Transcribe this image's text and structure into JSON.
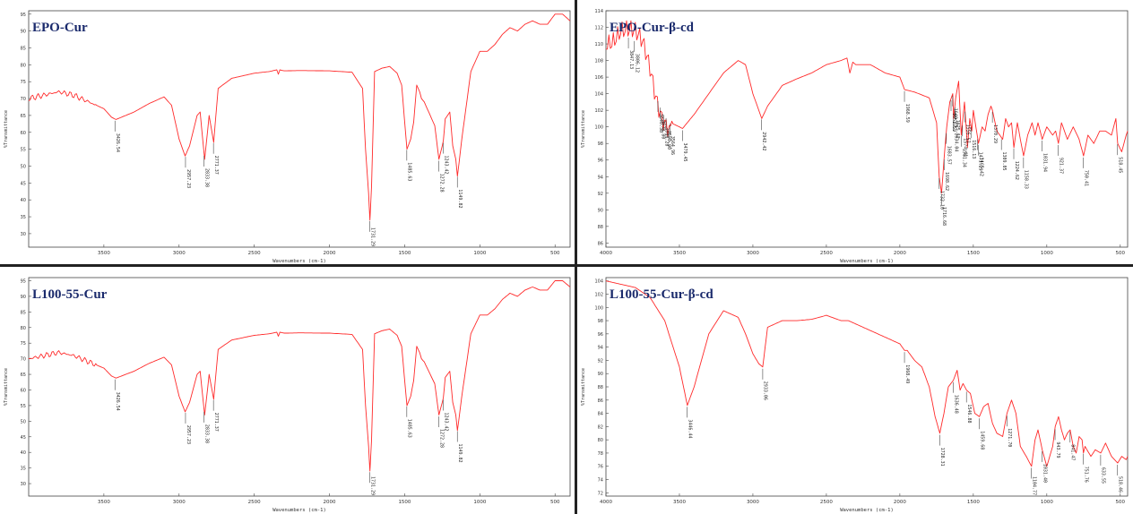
{
  "figure": {
    "line_color": "#ff2a2a",
    "title_color": "#1a2a6c",
    "axis_color": "#444444",
    "label_color": "#333333"
  },
  "chart_data": [
    {
      "type": "line",
      "title": "EPO-Cur",
      "xlabel": "Wavenumbers (cm-1)",
      "ylabel": "%Transmittance",
      "xlim": [
        4000,
        400
      ],
      "ylim": [
        26,
        96
      ],
      "xticks": [
        3500,
        3000,
        2500,
        2000,
        1500,
        1000,
        500
      ],
      "yticks": [
        30,
        35,
        40,
        45,
        50,
        55,
        60,
        65,
        70,
        75,
        80,
        85,
        90,
        95
      ],
      "grid": false,
      "x": [
        4000,
        3900,
        3800,
        3700,
        3600,
        3500,
        3450,
        3420,
        3300,
        3200,
        3100,
        3050,
        3000,
        2960,
        2930,
        2880,
        2860,
        2830,
        2800,
        2770,
        2740,
        2650,
        2500,
        2400,
        2350,
        2340,
        2330,
        2300,
        2200,
        2000,
        1850,
        1780,
        1760,
        1740,
        1731,
        1720,
        1700,
        1650,
        1600,
        1550,
        1520,
        1485,
        1460,
        1440,
        1420,
        1400,
        1388,
        1370,
        1340,
        1300,
        1272,
        1250,
        1243,
        1230,
        1200,
        1180,
        1160,
        1149,
        1120,
        1060,
        1000,
        950,
        900,
        850,
        800,
        750,
        700,
        650,
        600,
        550,
        500,
        450,
        400
      ],
      "values": [
        70,
        71,
        72,
        71,
        69,
        67,
        64.5,
        63.8,
        66,
        68.5,
        70.5,
        68,
        58,
        53,
        56,
        65,
        66,
        52,
        65,
        57,
        73,
        76,
        77.5,
        78,
        78.5,
        77.2,
        78.5,
        78.2,
        78.3,
        78.2,
        77.8,
        73,
        55,
        42,
        34,
        44,
        78,
        79,
        79.5,
        77.5,
        74,
        55,
        58,
        63,
        74,
        72,
        70,
        69,
        66,
        62,
        52,
        56,
        57.5,
        64,
        66,
        56,
        52,
        47,
        58,
        78,
        84,
        84,
        86,
        89,
        91,
        90,
        92,
        93,
        92,
        92,
        95,
        95,
        93
      ],
      "peak_labels": [
        {
          "text": "3426.54",
          "x": 3426.54,
          "y": 63.8
        },
        {
          "text": "2957.23",
          "x": 2957.23,
          "y": 53
        },
        {
          "text": "2833.38",
          "x": 2833.38,
          "y": 52
        },
        {
          "text": "2771.37",
          "x": 2771.37,
          "y": 57
        },
        {
          "text": "1731.29",
          "x": 1731.29,
          "y": 34
        },
        {
          "text": "1485.63",
          "x": 1485.63,
          "y": 55
        },
        {
          "text": "1272.28",
          "x": 1272.28,
          "y": 52
        },
        {
          "text": "1243.42",
          "x": 1243.42,
          "y": 57.5
        },
        {
          "text": "1149.82",
          "x": 1149.82,
          "y": 47
        }
      ]
    },
    {
      "type": "line",
      "title": "EPO-Cur-β-cd",
      "xlabel": "Wavenumbers (cm-1)",
      "ylabel": "%Transmittance",
      "xlim": [
        4000,
        450
      ],
      "ylim": [
        85.5,
        114
      ],
      "xticks": [
        4000,
        3500,
        3000,
        2500,
        2000,
        1500,
        1000,
        500
      ],
      "yticks": [
        86,
        88,
        90,
        92,
        94,
        96,
        98,
        100,
        102,
        104,
        106,
        108,
        110,
        112,
        114
      ],
      "grid": false,
      "x": [
        4000,
        3950,
        3900,
        3850,
        3800,
        3750,
        3700,
        3660,
        3620,
        3600,
        3560,
        3500,
        3479,
        3400,
        3300,
        3200,
        3100,
        3050,
        3000,
        2940,
        2900,
        2800,
        2700,
        2600,
        2500,
        2400,
        2360,
        2340,
        2320,
        2300,
        2200,
        2100,
        2000,
        1968,
        1900,
        1800,
        1750,
        1732,
        1716,
        1700,
        1681,
        1660,
        1640,
        1634,
        1620,
        1600,
        1582,
        1560,
        1540,
        1524,
        1510,
        1500,
        1465,
        1440,
        1420,
        1400,
        1380,
        1370,
        1340,
        1300,
        1280,
        1260,
        1240,
        1224,
        1200,
        1180,
        1158,
        1130,
        1100,
        1080,
        1060,
        1031,
        1000,
        960,
        940,
        921,
        900,
        860,
        820,
        780,
        750,
        720,
        680,
        640,
        600,
        560,
        530,
        518,
        490,
        460,
        450
      ],
      "values": [
        111,
        111,
        111.5,
        111,
        110.5,
        109.5,
        107,
        104,
        102,
        101.5,
        100.5,
        100,
        99.8,
        101.5,
        104,
        106.5,
        108,
        107.5,
        104,
        101,
        102.5,
        105,
        105.8,
        106.5,
        107.5,
        108,
        108.3,
        106.5,
        107.8,
        107.5,
        107.5,
        106.5,
        106,
        104.5,
        104.2,
        103.5,
        100.5,
        94,
        92,
        96,
        100,
        103,
        104,
        101,
        103.5,
        105.5,
        99,
        103,
        97.5,
        101,
        99.5,
        102,
        98,
        100,
        99.5,
        101.5,
        102.5,
        102,
        99.5,
        98.5,
        101,
        100,
        100.5,
        97.5,
        100.5,
        98.5,
        96.5,
        99,
        100.5,
        99,
        100.5,
        98.5,
        100,
        99,
        99.5,
        98,
        100.5,
        98.5,
        100,
        98.5,
        96.5,
        99,
        98,
        99.5,
        99.5,
        99,
        101,
        98,
        97,
        99,
        99.5
      ],
      "peak_labels": [
        {
          "text": "3847.13",
          "x": 3847.13,
          "y": 110
        },
        {
          "text": "3806.12",
          "x": 3806.12,
          "y": 110
        },
        {
          "text": "3646.38",
          "x": 3646.38,
          "y": 105
        },
        {
          "text": "3630.80",
          "x": 3630.8,
          "y": 105
        },
        {
          "text": "3606.28",
          "x": 3606.28,
          "y": 104
        },
        {
          "text": "3590.90",
          "x": 3590.9,
          "y": 103
        },
        {
          "text": "3564.96",
          "x": 3564.96,
          "y": 102
        },
        {
          "text": "3479.45",
          "x": 3479.45,
          "y": 99.8
        },
        {
          "text": "2942.42",
          "x": 2942.42,
          "y": 101
        },
        {
          "text": "1968.59",
          "x": 1968.59,
          "y": 104.5
        },
        {
          "text": "1732.10",
          "x": 1732.1,
          "y": 94
        },
        {
          "text": "1716.68",
          "x": 1716.68,
          "y": 92
        },
        {
          "text": "1698.62",
          "x": 1698.62,
          "y": 96
        },
        {
          "text": "1683.57",
          "x": 1683.57,
          "y": 100
        },
        {
          "text": "1651.59",
          "x": 1651.59,
          "y": 103
        },
        {
          "text": "1640.33",
          "x": 1640.33,
          "y": 104
        },
        {
          "text": "1634.04",
          "x": 1634.04,
          "y": 101
        },
        {
          "text": "1625.12",
          "x": 1625.12,
          "y": 104
        },
        {
          "text": "1581.34",
          "x": 1581.34,
          "y": 99
        },
        {
          "text": "1574.41",
          "x": 1574.41,
          "y": 100
        },
        {
          "text": "1556.57",
          "x": 1556.57,
          "y": 102
        },
        {
          "text": "1516.13",
          "x": 1516.13,
          "y": 101
        },
        {
          "text": "1465.42",
          "x": 1465.42,
          "y": 98
        },
        {
          "text": "1471.29",
          "x": 1471.29,
          "y": 99
        },
        {
          "text": "1370.29",
          "x": 1370.29,
          "y": 102
        },
        {
          "text": "1309.05",
          "x": 1309.05,
          "y": 98.5
        },
        {
          "text": "1224.62",
          "x": 1224.62,
          "y": 97.5
        },
        {
          "text": "1158.33",
          "x": 1158.33,
          "y": 96.5
        },
        {
          "text": "1031.94",
          "x": 1031.94,
          "y": 98.5
        },
        {
          "text": "921.37",
          "x": 921.37,
          "y": 98
        },
        {
          "text": "750.41",
          "x": 750.41,
          "y": 96.5
        },
        {
          "text": "518.45",
          "x": 518.45,
          "y": 97
        }
      ]
    },
    {
      "type": "line",
      "title": "L100-55-Cur",
      "xlabel": "Wavenumbers (cm-1)",
      "ylabel": "%Transmittance",
      "xlim": [
        4000,
        400
      ],
      "ylim": [
        26,
        96
      ],
      "xticks": [
        3500,
        3000,
        2500,
        2000,
        1500,
        1000,
        500
      ],
      "yticks": [
        30,
        35,
        40,
        45,
        50,
        55,
        60,
        65,
        70,
        75,
        80,
        85,
        90,
        95
      ],
      "grid": false,
      "x": [
        4000,
        3900,
        3800,
        3700,
        3600,
        3500,
        3450,
        3420,
        3300,
        3200,
        3100,
        3050,
        3000,
        2960,
        2930,
        2880,
        2860,
        2830,
        2800,
        2770,
        2740,
        2650,
        2500,
        2400,
        2350,
        2340,
        2330,
        2300,
        2200,
        2000,
        1850,
        1780,
        1760,
        1740,
        1731,
        1720,
        1700,
        1650,
        1600,
        1550,
        1520,
        1485,
        1460,
        1440,
        1420,
        1400,
        1388,
        1370,
        1340,
        1300,
        1272,
        1250,
        1243,
        1230,
        1200,
        1180,
        1160,
        1149,
        1120,
        1060,
        1000,
        950,
        900,
        850,
        800,
        750,
        700,
        650,
        600,
        550,
        500,
        450,
        400
      ],
      "values": [
        70,
        71,
        72,
        71,
        69,
        67,
        64.5,
        63.8,
        66,
        68.5,
        70.5,
        68,
        58,
        53,
        56,
        65,
        66,
        52,
        65,
        57,
        73,
        76,
        77.5,
        78,
        78.5,
        77.2,
        78.5,
        78.2,
        78.3,
        78.2,
        77.8,
        73,
        55,
        42,
        34,
        44,
        78,
        79,
        79.5,
        77.5,
        74,
        55,
        58,
        63,
        74,
        72,
        70,
        69,
        66,
        62,
        52,
        56,
        57.5,
        64,
        66,
        56,
        52,
        47,
        58,
        78,
        84,
        84,
        86,
        89,
        91,
        90,
        92,
        93,
        92,
        92,
        95,
        95,
        93
      ],
      "peak_labels": [
        {
          "text": "3426.54",
          "x": 3426.54,
          "y": 63.8
        },
        {
          "text": "2957.23",
          "x": 2957.23,
          "y": 53
        },
        {
          "text": "2833.38",
          "x": 2833.38,
          "y": 52
        },
        {
          "text": "2771.37",
          "x": 2771.37,
          "y": 57
        },
        {
          "text": "1731.29",
          "x": 1731.29,
          "y": 34
        },
        {
          "text": "1485.63",
          "x": 1485.63,
          "y": 55
        },
        {
          "text": "1272.28",
          "x": 1272.28,
          "y": 52
        },
        {
          "text": "1243.42",
          "x": 1243.42,
          "y": 57.5
        },
        {
          "text": "1149.82",
          "x": 1149.82,
          "y": 47
        }
      ]
    },
    {
      "type": "line",
      "title": "L100-55-Cur-β-cd",
      "xlabel": "Wavenumbers (cm-1)",
      "ylabel": "%Transmittance",
      "xlim": [
        4000,
        450
      ],
      "ylim": [
        71.5,
        104.5
      ],
      "xticks": [
        4000,
        3500,
        3000,
        2500,
        2000,
        1500,
        1000,
        500
      ],
      "yticks": [
        72,
        74,
        76,
        78,
        80,
        82,
        84,
        86,
        88,
        90,
        92,
        94,
        96,
        98,
        100,
        102,
        104
      ],
      "grid": false,
      "x": [
        4000,
        3900,
        3800,
        3700,
        3600,
        3500,
        3446,
        3400,
        3300,
        3200,
        3100,
        3050,
        3000,
        2960,
        2933,
        2900,
        2800,
        2700,
        2600,
        2500,
        2400,
        2350,
        2300,
        2200,
        2100,
        2000,
        1968,
        1950,
        1900,
        1850,
        1800,
        1760,
        1728,
        1700,
        1670,
        1636,
        1610,
        1590,
        1570,
        1546,
        1520,
        1490,
        1459,
        1430,
        1400,
        1370,
        1340,
        1300,
        1271,
        1240,
        1210,
        1180,
        1140,
        1104,
        1080,
        1060,
        1031,
        1000,
        980,
        960,
        943,
        920,
        900,
        880,
        860,
        841,
        820,
        800,
        780,
        760,
        751,
        740,
        700,
        670,
        633,
        600,
        560,
        518,
        490,
        460,
        450
      ],
      "values": [
        104,
        103.5,
        103,
        101.5,
        98,
        91,
        85.2,
        88,
        96,
        99.5,
        98.5,
        96,
        93,
        91.5,
        91,
        97,
        98,
        98,
        98.2,
        98.8,
        98,
        98,
        97.5,
        96.5,
        95.5,
        94.5,
        93.5,
        93.5,
        92,
        91,
        88,
        83.5,
        81,
        84,
        88,
        89,
        90.5,
        87.5,
        88.5,
        87.5,
        87,
        84,
        83.5,
        85,
        85.5,
        82.5,
        81,
        80.5,
        84,
        86,
        84,
        79,
        77.5,
        76,
        80,
        81.5,
        78.5,
        76,
        77.5,
        79,
        82,
        83.5,
        81.5,
        80,
        81,
        81.5,
        79,
        78,
        80.5,
        80,
        78,
        79,
        77.5,
        78.5,
        78,
        79.5,
        77.5,
        76.5,
        77.5,
        77,
        77.5
      ],
      "peak_labels": [
        {
          "text": "3446.44",
          "x": 3446.44,
          "y": 85.2
        },
        {
          "text": "2933.06",
          "x": 2933.06,
          "y": 91
        },
        {
          "text": "1968.49",
          "x": 1968.49,
          "y": 93.5
        },
        {
          "text": "1728.31",
          "x": 1728.31,
          "y": 81
        },
        {
          "text": "1636.48",
          "x": 1636.48,
          "y": 89
        },
        {
          "text": "1546.88",
          "x": 1546.88,
          "y": 87.5
        },
        {
          "text": "1459.68",
          "x": 1459.68,
          "y": 83.5
        },
        {
          "text": "1271.70",
          "x": 1271.7,
          "y": 80.5
        },
        {
          "text": "1104.77",
          "x": 1104.77,
          "y": 76
        },
        {
          "text": "1031.40",
          "x": 1031.4,
          "y": 78.5
        },
        {
          "text": "943.79",
          "x": 943.79,
          "y": 82
        },
        {
          "text": "841.47",
          "x": 841.47,
          "y": 81.5
        },
        {
          "text": "751.76",
          "x": 751.76,
          "y": 78
        },
        {
          "text": "633.55",
          "x": 633.55,
          "y": 78
        },
        {
          "text": "518.46",
          "x": 518.46,
          "y": 76.5
        }
      ]
    }
  ]
}
